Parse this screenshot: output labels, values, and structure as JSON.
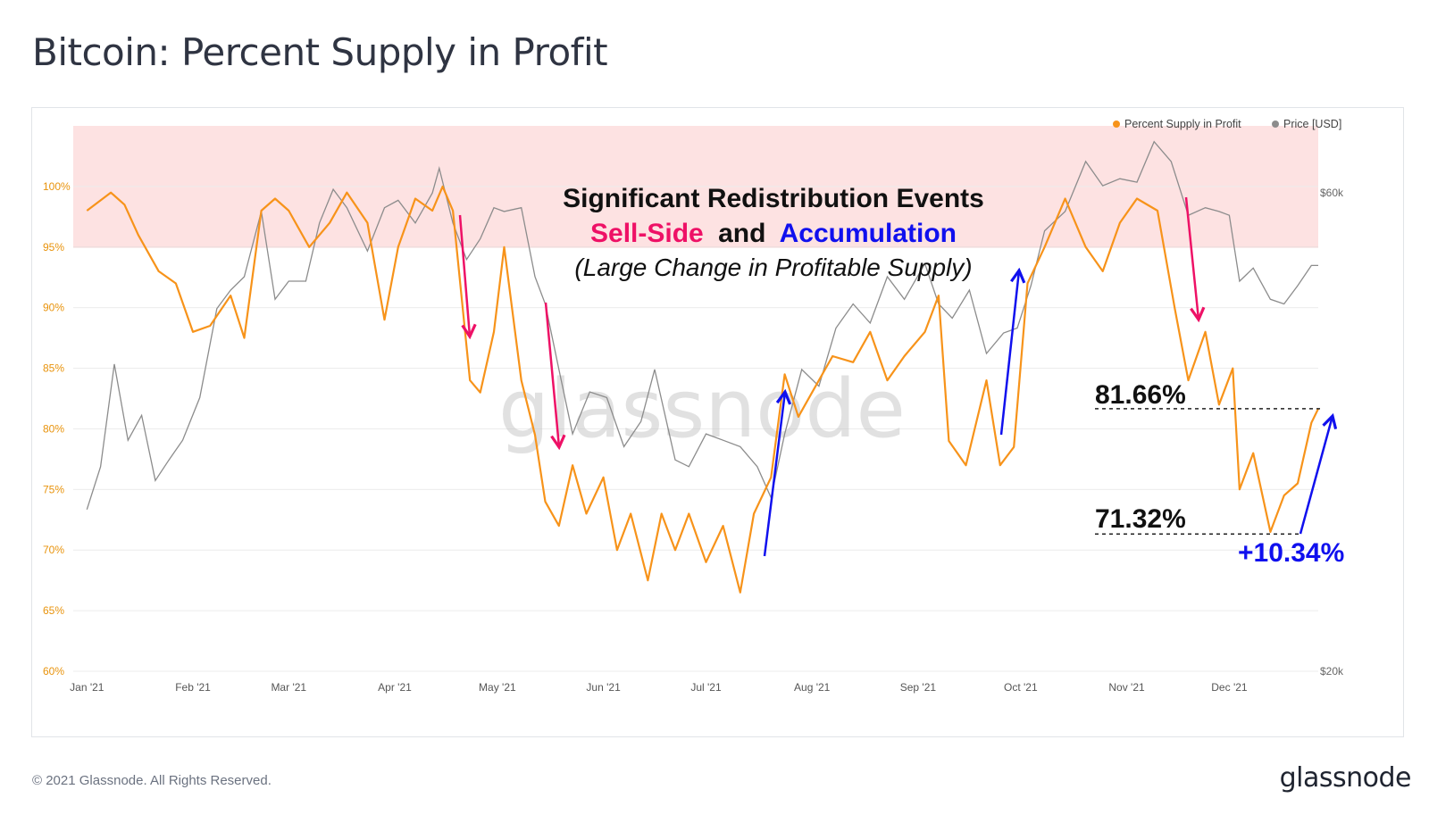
{
  "title": "Bitcoin: Percent Supply in Profit",
  "footer": {
    "copyright": "© 2021 Glassnode. All Rights Reserved.",
    "logo": "glassnode"
  },
  "watermark": "glassnode",
  "colors": {
    "supply": "#f7931a",
    "price": "#8c8c8c",
    "sell_side": "#ee1166",
    "accumulation": "#1010ee",
    "zone_fill": "#fde2e2",
    "zone_line": "#f08080",
    "left_tick": "#e8930c"
  },
  "annotations": {
    "headline": "Significant Redistribution Events",
    "sell_side": "Sell-Side",
    "and": "and",
    "accumulation": "Accumulation",
    "subtitle": "(Large Change in Profitable Supply)",
    "level_high": "81.66%",
    "level_low": "71.32%",
    "change": "+10.34%"
  },
  "chart_data": {
    "type": "line",
    "legend": [
      "Percent Supply in Profit",
      "Price [USD]"
    ],
    "legend_position": "top-right",
    "x_ticks": [
      "Jan '21",
      "Feb '21",
      "Mar '21",
      "Apr '21",
      "May '21",
      "Jun '21",
      "Jul '21",
      "Aug '21",
      "Sep '21",
      "Oct '21",
      "Nov '21",
      "Dec '21"
    ],
    "y_left_ticks": [
      "100%",
      "95%",
      "90%",
      "85%",
      "80%",
      "75%",
      "70%",
      "65%",
      "60%"
    ],
    "y_left_range": [
      60,
      105
    ],
    "y_right_ticks": [
      "$60k",
      "$20k"
    ],
    "y_right_range": [
      20000,
      70000
    ],
    "y_right_scale": "log",
    "grid": true,
    "highlight_band": [
      95,
      105
    ],
    "levels": [
      81.66,
      71.32
    ],
    "series": [
      {
        "name": "Percent Supply in Profit",
        "x": [
          "2021-01-01",
          "2021-01-08",
          "2021-01-12",
          "2021-01-16",
          "2021-01-22",
          "2021-01-27",
          "2021-02-01",
          "2021-02-06",
          "2021-02-12",
          "2021-02-16",
          "2021-02-21",
          "2021-02-25",
          "2021-03-01",
          "2021-03-07",
          "2021-03-13",
          "2021-03-18",
          "2021-03-24",
          "2021-03-29",
          "2021-04-02",
          "2021-04-07",
          "2021-04-12",
          "2021-04-15",
          "2021-04-18",
          "2021-04-23",
          "2021-04-26",
          "2021-04-30",
          "2021-05-03",
          "2021-05-08",
          "2021-05-12",
          "2021-05-15",
          "2021-05-19",
          "2021-05-23",
          "2021-05-27",
          "2021-06-01",
          "2021-06-05",
          "2021-06-09",
          "2021-06-14",
          "2021-06-18",
          "2021-06-22",
          "2021-06-26",
          "2021-07-01",
          "2021-07-06",
          "2021-07-11",
          "2021-07-15",
          "2021-07-20",
          "2021-07-24",
          "2021-07-28",
          "2021-08-01",
          "2021-08-07",
          "2021-08-13",
          "2021-08-18",
          "2021-08-23",
          "2021-08-28",
          "2021-09-03",
          "2021-09-07",
          "2021-09-10",
          "2021-09-15",
          "2021-09-21",
          "2021-09-25",
          "2021-09-29",
          "2021-10-03",
          "2021-10-08",
          "2021-10-14",
          "2021-10-20",
          "2021-10-25",
          "2021-10-30",
          "2021-11-04",
          "2021-11-10",
          "2021-11-15",
          "2021-11-19",
          "2021-11-24",
          "2021-11-28",
          "2021-12-02",
          "2021-12-04",
          "2021-12-08",
          "2021-12-13",
          "2021-12-17",
          "2021-12-21",
          "2021-12-25",
          "2021-12-27"
        ],
        "values": [
          98,
          99.5,
          98.5,
          96,
          93,
          92,
          88,
          88.5,
          91,
          87.5,
          98,
          99,
          98,
          95,
          97,
          99.5,
          97,
          89,
          95,
          99,
          98,
          100,
          98,
          84,
          83,
          88,
          95,
          84,
          79.5,
          74,
          72,
          77,
          73,
          76,
          70,
          73,
          67.5,
          73,
          70,
          73,
          69,
          72,
          66.5,
          73,
          76,
          84.5,
          81,
          83,
          86,
          85.5,
          88,
          84,
          86,
          88,
          91,
          79,
          77,
          84,
          77,
          78.5,
          92,
          95,
          99,
          95,
          93,
          97,
          99,
          98,
          90,
          84,
          88,
          82,
          85,
          75,
          78,
          71.5,
          74.5,
          75.5,
          80.5,
          81.66
        ]
      },
      {
        "name": "Price [USD]",
        "x": [
          "2021-01-01",
          "2021-01-05",
          "2021-01-09",
          "2021-01-13",
          "2021-01-17",
          "2021-01-21",
          "2021-01-25",
          "2021-01-29",
          "2021-02-03",
          "2021-02-08",
          "2021-02-12",
          "2021-02-16",
          "2021-02-21",
          "2021-02-25",
          "2021-03-01",
          "2021-03-06",
          "2021-03-10",
          "2021-03-14",
          "2021-03-18",
          "2021-03-24",
          "2021-03-29",
          "2021-04-02",
          "2021-04-07",
          "2021-04-12",
          "2021-04-14",
          "2021-04-18",
          "2021-04-22",
          "2021-04-26",
          "2021-04-30",
          "2021-05-03",
          "2021-05-08",
          "2021-05-12",
          "2021-05-15",
          "2021-05-19",
          "2021-05-23",
          "2021-05-28",
          "2021-06-02",
          "2021-06-07",
          "2021-06-12",
          "2021-06-16",
          "2021-06-22",
          "2021-06-26",
          "2021-07-01",
          "2021-07-06",
          "2021-07-11",
          "2021-07-16",
          "2021-07-20",
          "2021-07-24",
          "2021-07-29",
          "2021-08-03",
          "2021-08-08",
          "2021-08-13",
          "2021-08-18",
          "2021-08-23",
          "2021-08-28",
          "2021-09-03",
          "2021-09-07",
          "2021-09-11",
          "2021-09-16",
          "2021-09-21",
          "2021-09-26",
          "2021-09-30",
          "2021-10-04",
          "2021-10-08",
          "2021-10-14",
          "2021-10-20",
          "2021-10-25",
          "2021-10-30",
          "2021-11-04",
          "2021-11-09",
          "2021-11-14",
          "2021-11-19",
          "2021-11-24",
          "2021-11-28",
          "2021-12-01",
          "2021-12-04",
          "2021-12-08",
          "2021-12-13",
          "2021-12-17",
          "2021-12-21",
          "2021-12-25",
          "2021-12-27"
        ],
        "values": [
          29000,
          32000,
          40500,
          34000,
          36000,
          31000,
          32500,
          34000,
          37500,
          46000,
          48000,
          49500,
          57500,
          47000,
          49000,
          49000,
          56000,
          60500,
          58000,
          52500,
          58000,
          59000,
          56000,
          60000,
          63500,
          56000,
          51500,
          54000,
          58000,
          57500,
          58000,
          49500,
          46500,
          40000,
          34500,
          38000,
          37500,
          33500,
          35500,
          40000,
          32500,
          32000,
          34500,
          34000,
          33500,
          32000,
          29800,
          34500,
          40000,
          38500,
          44000,
          46500,
          44500,
          49500,
          47000,
          51000,
          46500,
          45000,
          48000,
          41500,
          43500,
          44000,
          48500,
          55000,
          57500,
          64500,
          61000,
          62000,
          61500,
          67500,
          64500,
          57000,
          58000,
          57500,
          57000,
          49000,
          50500,
          47000,
          46500,
          48500,
          50800,
          50800
        ]
      }
    ]
  }
}
